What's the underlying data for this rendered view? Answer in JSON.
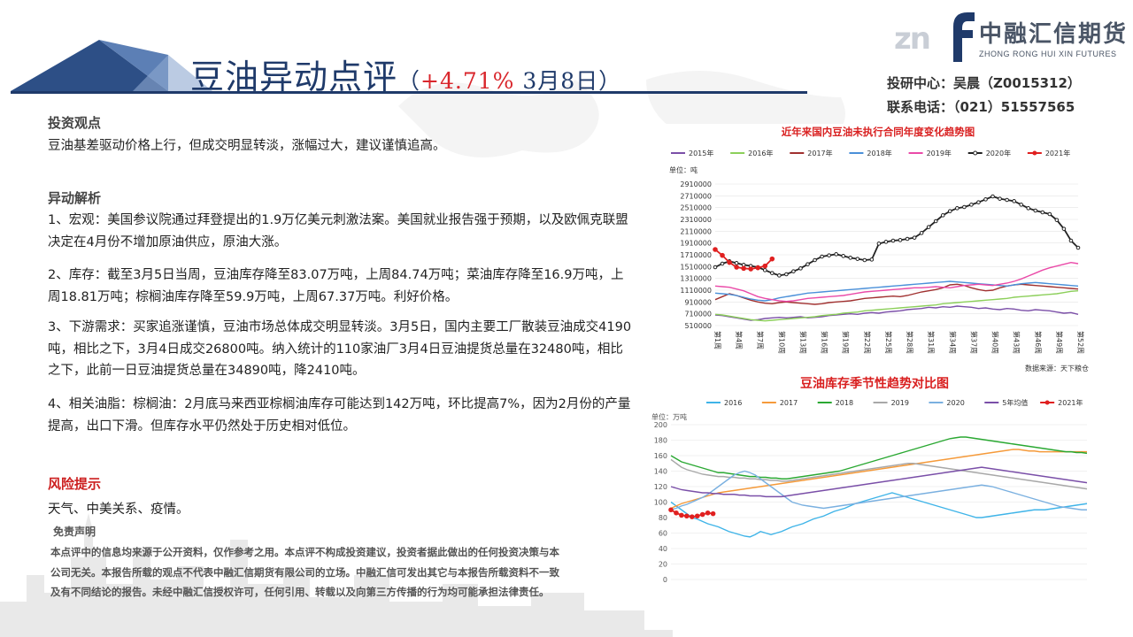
{
  "header": {
    "title_main": "豆油异动点评",
    "title_paren_open": "（",
    "title_change": "+4.71%",
    "title_date": " 3月8日",
    "title_paren_close": "）"
  },
  "logo": {
    "mark": "zn",
    "name_cn": "中融汇信期货",
    "name_en": "ZHONG RONG HUI XIN FUTURES",
    "brand_color": "#1f3a6a"
  },
  "contact": {
    "analyst": "投研中心：吴晨（Z0015312）",
    "phone": "联系电话：（021）51557565"
  },
  "sections": {
    "view_heading": "投资观点",
    "view_text": "豆油基差驱动价格上行，但成交明显转淡，涨幅过大，建议谨慎追高。",
    "analysis_heading": "异动解析",
    "analysis_items": [
      "1、宏观：美国参议院通过拜登提出的1.9万亿美元刺激法案。美国就业报告强于预期，以及欧佩克联盟决定在4月份不增加原油供应，原油大涨。",
      "2、库存：截至3月5日当周，豆油库存降至83.07万吨，上周84.74万吨；菜油库存降至16.9万吨，上周18.81万吨；棕榈油库存降至59.9万吨，上周67.37万吨。利好价格。",
      "3、下游需求：买家追涨谨慎，豆油市场总体成交明显转淡。3月5日，国内主要工厂散装豆油成交4190吨，相比之下，3月4日成交26800吨。纳入统计的110家油厂3月4日豆油提货总量在32480吨，相比之下，此前一日豆油提货总量在34890吨，降2410吨。",
      "4、相关油脂：棕榈油：2月底马来西亚棕榈油库存可能达到142万吨，环比提高7%，因为2月份的产量提高，出口下滑。但库存水平仍然处于历史相对低位。"
    ],
    "risk_heading": "风险提示",
    "risk_text": "天气、中美关系、疫情。",
    "risk_color": "#cc1f1f",
    "disclaimer_heading": "免责声明",
    "disclaimer_text": "本点评中的信息均来源于公开资料，仅作参考之用。本点评不构成投资建议，投资者据此做出的任何投资决策与本公司无关。本报告所载的观点不代表中融汇信期货有限公司的立场。中融汇信可发出其它与本报告所载资料不一致及有不同结论的报告。未经中融汇信授权许可，任何引用、转载以及向第三方传播的行为均可能承担法律责任。"
  },
  "chart_data": [
    {
      "type": "line",
      "title": "近年来国内豆油未执行合同年度变化趋势图",
      "ylabel": "单位：吨",
      "source": "数据来源：天下粮仓",
      "ylim": [
        510000,
        2910000
      ],
      "y_ticks": [
        "2910000",
        "2710000",
        "2510000",
        "2310000",
        "2110000",
        "1910000",
        "1710000",
        "1510000",
        "1310000",
        "1110000",
        "910000",
        "710000",
        "510000"
      ],
      "x_ticks": [
        "第1周",
        "第4周",
        "第7周",
        "第10周",
        "第13周",
        "第16周",
        "第19周",
        "第22周",
        "第25周",
        "第28周",
        "第31周",
        "第34周",
        "第37周",
        "第40周",
        "第43周",
        "第46周",
        "第49周",
        "第52周"
      ],
      "x_range": [
        1,
        52
      ],
      "legend_position": "top",
      "series": [
        {
          "name": "2015年",
          "color": "#7b4fa8",
          "values": [
            690000,
            680000,
            660000,
            640000,
            620000,
            600000,
            610000,
            630000,
            640000,
            650000,
            640000,
            650000,
            660000,
            640000,
            650000,
            660000,
            680000,
            690000,
            700000,
            710000,
            700000,
            720000,
            730000,
            720000,
            740000,
            750000,
            760000,
            780000,
            790000,
            800000,
            820000,
            810000,
            830000,
            820000,
            840000,
            830000,
            820000,
            800000,
            810000,
            790000,
            780000,
            800000,
            790000,
            770000,
            760000,
            780000,
            770000,
            760000,
            740000,
            720000,
            730000,
            700000
          ]
        },
        {
          "name": "2016年",
          "color": "#8ccf5a",
          "values": [
            700000,
            690000,
            670000,
            650000,
            630000,
            610000,
            600000,
            590000,
            600000,
            610000,
            620000,
            630000,
            640000,
            650000,
            660000,
            680000,
            690000,
            700000,
            720000,
            730000,
            740000,
            760000,
            770000,
            780000,
            790000,
            800000,
            810000,
            820000,
            830000,
            840000,
            850000,
            860000,
            880000,
            890000,
            900000,
            910000,
            920000,
            930000,
            940000,
            950000,
            960000,
            970000,
            990000,
            1000000,
            1010000,
            1020000,
            1030000,
            1040000,
            1050000,
            1070000,
            1090000,
            1100000
          ]
        },
        {
          "name": "2017年",
          "color": "#a0302f",
          "values": [
            950000,
            1000000,
            1050000,
            1020000,
            980000,
            940000,
            910000,
            890000,
            880000,
            900000,
            910000,
            900000,
            890000,
            880000,
            870000,
            880000,
            900000,
            910000,
            920000,
            930000,
            950000,
            970000,
            980000,
            990000,
            1000000,
            1010000,
            1000000,
            1020000,
            1050000,
            1080000,
            1100000,
            1120000,
            1150000,
            1200000,
            1210000,
            1190000,
            1150000,
            1120000,
            1100000,
            1110000,
            1150000,
            1180000,
            1200000,
            1210000,
            1200000,
            1190000,
            1180000,
            1170000,
            1160000,
            1150000,
            1140000,
            1130000
          ]
        },
        {
          "name": "2018年",
          "color": "#4a90d9",
          "values": [
            1060000,
            1050000,
            1040000,
            1020000,
            990000,
            960000,
            940000,
            930000,
            950000,
            980000,
            1000000,
            1020000,
            1040000,
            1060000,
            1070000,
            1080000,
            1090000,
            1100000,
            1110000,
            1120000,
            1130000,
            1140000,
            1150000,
            1160000,
            1170000,
            1180000,
            1190000,
            1200000,
            1210000,
            1220000,
            1230000,
            1240000,
            1250000,
            1260000,
            1250000,
            1240000,
            1230000,
            1220000,
            1210000,
            1200000,
            1190000,
            1180000,
            1200000,
            1220000,
            1230000,
            1240000,
            1230000,
            1220000,
            1210000,
            1200000,
            1190000,
            1180000
          ]
        },
        {
          "name": "2019年",
          "color": "#ea4aa8",
          "values": [
            1180000,
            1170000,
            1160000,
            1130000,
            1100000,
            1050000,
            1000000,
            970000,
            950000,
            930000,
            920000,
            930000,
            950000,
            970000,
            980000,
            990000,
            1000000,
            1010000,
            1020000,
            1040000,
            1060000,
            1080000,
            1090000,
            1100000,
            1110000,
            1120000,
            1130000,
            1140000,
            1150000,
            1150000,
            1160000,
            1170000,
            1160000,
            1150000,
            1170000,
            1190000,
            1200000,
            1210000,
            1200000,
            1190000,
            1210000,
            1230000,
            1260000,
            1300000,
            1350000,
            1400000,
            1450000,
            1490000,
            1520000,
            1550000,
            1580000,
            1560000
          ]
        },
        {
          "name": "2020年",
          "color": "#222222",
          "values": [
            1500000,
            1560000,
            1600000,
            1570000,
            1540000,
            1520000,
            1500000,
            1450000,
            1400000,
            1360000,
            1380000,
            1430000,
            1480000,
            1550000,
            1620000,
            1680000,
            1700000,
            1720000,
            1690000,
            1660000,
            1640000,
            1620000,
            1630000,
            1900000,
            1930000,
            1950000,
            1960000,
            1980000,
            2000000,
            2080000,
            2180000,
            2280000,
            2380000,
            2450000,
            2500000,
            2520000,
            2560000,
            2600000,
            2650000,
            2700000,
            2660000,
            2640000,
            2620000,
            2560000,
            2500000,
            2460000,
            2430000,
            2400000,
            2300000,
            2150000,
            1950000,
            1830000
          ]
        },
        {
          "name": "2021年",
          "color": "#e02020",
          "values": [
            1800000,
            1700000,
            1580000,
            1500000,
            1480000,
            1470000,
            1490000,
            1520000,
            1640000
          ]
        }
      ]
    },
    {
      "type": "line",
      "title": "豆油库存季节性趋势对比图",
      "ylabel": "单位：万吨",
      "ylim": [
        0,
        200
      ],
      "y_ticks": [
        "200",
        "180",
        "160",
        "140",
        "120",
        "100",
        "80",
        "60",
        "40",
        "20",
        "0"
      ],
      "legend_position": "top",
      "series": [
        {
          "name": "2016",
          "color": "#3fb4e8",
          "values": [
            100,
            95,
            90,
            85,
            80,
            78,
            75,
            72,
            70,
            68,
            65,
            62,
            60,
            58,
            56,
            55,
            58,
            62,
            60,
            58,
            60,
            62,
            65,
            68,
            70,
            72,
            75,
            78,
            80,
            82,
            85,
            88,
            90,
            92,
            95,
            98,
            100,
            102,
            104,
            106,
            108,
            110,
            112,
            110,
            108,
            106,
            104,
            102,
            100,
            98,
            96,
            94,
            92,
            90,
            88,
            86,
            84,
            82,
            80,
            80,
            81,
            82,
            83,
            84,
            85,
            86,
            87,
            88,
            89,
            90,
            90,
            90,
            91,
            92,
            93,
            94,
            95,
            96,
            97,
            98
          ]
        },
        {
          "name": "2017",
          "color": "#f59a3a",
          "values": [
            92,
            95,
            98,
            100,
            102,
            104,
            106,
            108,
            110,
            112,
            113,
            114,
            115,
            116,
            117,
            118,
            119,
            120,
            121,
            122,
            123,
            124,
            125,
            126,
            127,
            128,
            129,
            130,
            131,
            132,
            133,
            134,
            135,
            136,
            137,
            138,
            139,
            140,
            141,
            142,
            143,
            144,
            145,
            146,
            147,
            148,
            149,
            150,
            151,
            152,
            153,
            154,
            155,
            156,
            157,
            158,
            159,
            160,
            161,
            162,
            163,
            164,
            165,
            166,
            167,
            168,
            168,
            167,
            166,
            166,
            165,
            165,
            165,
            165,
            165,
            165,
            165,
            165,
            165,
            165
          ]
        },
        {
          "name": "2018",
          "color": "#2aa832",
          "values": [
            160,
            156,
            152,
            150,
            148,
            146,
            144,
            142,
            140,
            138,
            138,
            137,
            136,
            135,
            134,
            133,
            133,
            132,
            132,
            131,
            131,
            130,
            130,
            131,
            132,
            133,
            134,
            135,
            136,
            137,
            138,
            139,
            140,
            142,
            144,
            146,
            148,
            150,
            152,
            154,
            156,
            158,
            160,
            162,
            164,
            166,
            168,
            170,
            172,
            174,
            176,
            178,
            180,
            182,
            183,
            184,
            184,
            183,
            182,
            181,
            180,
            179,
            178,
            177,
            176,
            175,
            174,
            173,
            172,
            171,
            170,
            169,
            168,
            167,
            166,
            165,
            165,
            164,
            164,
            163
          ]
        },
        {
          "name": "2019",
          "color": "#a8a8a8",
          "values": [
            155,
            150,
            145,
            142,
            140,
            138,
            136,
            135,
            134,
            133,
            133,
            132,
            132,
            131,
            131,
            130,
            130,
            129,
            129,
            128,
            128,
            127,
            127,
            128,
            129,
            130,
            131,
            132,
            133,
            134,
            135,
            136,
            137,
            138,
            139,
            140,
            141,
            142,
            143,
            144,
            145,
            146,
            147,
            148,
            149,
            150,
            150,
            149,
            148,
            147,
            146,
            145,
            144,
            143,
            142,
            141,
            140,
            139,
            138,
            137,
            136,
            135,
            134,
            133,
            132,
            131,
            130,
            129,
            128,
            127,
            126,
            125,
            124,
            123,
            122,
            121,
            120,
            119,
            118,
            117
          ]
        },
        {
          "name": "2020",
          "color": "#7ab0e0",
          "values": [
            90,
            92,
            95,
            97,
            100,
            103,
            106,
            110,
            115,
            120,
            125,
            130,
            135,
            138,
            140,
            138,
            135,
            130,
            125,
            120,
            115,
            110,
            105,
            100,
            98,
            96,
            95,
            94,
            93,
            92,
            93,
            94,
            95,
            96,
            97,
            98,
            99,
            100,
            101,
            102,
            103,
            104,
            105,
            106,
            107,
            108,
            109,
            110,
            111,
            112,
            113,
            114,
            115,
            116,
            117,
            118,
            119,
            120,
            121,
            122,
            121,
            120,
            118,
            116,
            114,
            112,
            110,
            108,
            106,
            104,
            102,
            100,
            98,
            96,
            94,
            93,
            92,
            91,
            90,
            90
          ]
        },
        {
          "name": "5年均值",
          "color": "#7a4fa8",
          "values": [
            120,
            118,
            116,
            115,
            114,
            113,
            112,
            112,
            111,
            111,
            110,
            110,
            110,
            109,
            109,
            108,
            108,
            108,
            107,
            107,
            107,
            107,
            108,
            109,
            110,
            111,
            112,
            113,
            114,
            115,
            116,
            117,
            118,
            119,
            120,
            121,
            122,
            123,
            124,
            125,
            126,
            127,
            128,
            129,
            130,
            131,
            132,
            133,
            134,
            135,
            136,
            137,
            138,
            139,
            140,
            141,
            142,
            143,
            144,
            145,
            144,
            143,
            142,
            141,
            140,
            139,
            138,
            137,
            136,
            135,
            134,
            133,
            132,
            131,
            130,
            129,
            128,
            127,
            126,
            125
          ]
        },
        {
          "name": "2021年",
          "color": "#e02020",
          "values": [
            90,
            86,
            83,
            82,
            81,
            82,
            84,
            86,
            85
          ]
        }
      ]
    }
  ]
}
